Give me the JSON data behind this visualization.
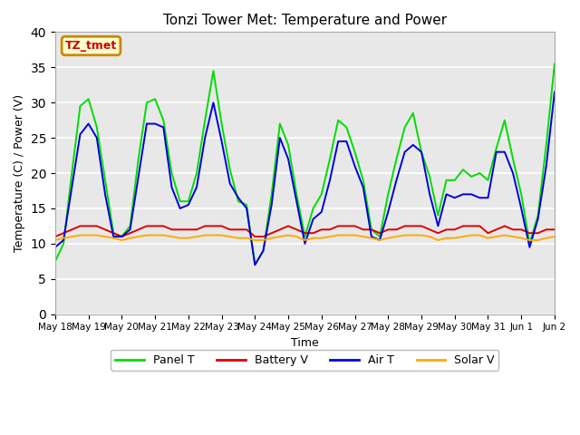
{
  "title": "Tonzi Tower Met: Temperature and Power",
  "xlabel": "Time",
  "ylabel": "Temperature (C) / Power (V)",
  "ylim": [
    0,
    40
  ],
  "yticks": [
    0,
    5,
    10,
    15,
    20,
    25,
    30,
    35,
    40
  ],
  "bg_color": "#e8e8e8",
  "fig_color": "#ffffff",
  "annotation_text": "TZ_tmet",
  "annotation_bg": "#ffffcc",
  "annotation_border": "#cc8800",
  "annotation_text_color": "#cc0000",
  "xtick_labels": [
    "May 18",
    "May 19",
    "May 20",
    "May 21",
    "May 22",
    "May 23",
    "May 24",
    "May 25",
    "May 26",
    "May 27",
    "May 28",
    "May 29",
    "May 30",
    "May 31",
    "Jun 1",
    "Jun 2"
  ],
  "xlim": [
    0,
    15
  ],
  "series": {
    "panel_t": {
      "label": "Panel T",
      "color": "#00dd00",
      "lw": 1.4
    },
    "battery_v": {
      "label": "Battery V",
      "color": "#dd0000",
      "lw": 1.4
    },
    "air_t": {
      "label": "Air T",
      "color": "#0000dd",
      "lw": 1.4
    },
    "solar_v": {
      "label": "Solar V",
      "color": "#ffaa00",
      "lw": 1.4
    }
  },
  "panel_t_x": [
    0.0,
    0.25,
    0.5,
    0.75,
    1.0,
    1.25,
    1.5,
    1.75,
    2.0,
    2.25,
    2.5,
    2.75,
    3.0,
    3.25,
    3.5,
    3.75,
    4.0,
    4.25,
    4.5,
    4.75,
    5.0,
    5.25,
    5.5,
    5.75,
    6.0,
    6.25,
    6.5,
    6.75,
    7.0,
    7.25,
    7.5,
    7.75,
    8.0,
    8.25,
    8.5,
    8.75,
    9.0,
    9.25,
    9.5,
    9.75,
    10.0,
    10.25,
    10.5,
    10.75,
    11.0,
    11.25,
    11.5,
    11.75,
    12.0,
    12.25,
    12.5,
    12.75,
    13.0,
    13.25,
    13.5,
    13.75,
    14.0,
    14.25,
    14.5,
    14.75,
    15.0
  ],
  "panel_t_y": [
    7.5,
    10.0,
    20.0,
    29.5,
    30.5,
    26.5,
    19.0,
    11.5,
    11.0,
    12.5,
    22.0,
    30.0,
    30.5,
    27.5,
    20.0,
    16.0,
    16.0,
    20.0,
    27.5,
    34.5,
    27.0,
    20.5,
    16.0,
    15.5,
    7.0,
    9.0,
    17.0,
    27.0,
    24.0,
    17.0,
    11.0,
    15.0,
    17.0,
    22.0,
    27.5,
    26.5,
    23.0,
    19.0,
    12.0,
    11.0,
    17.0,
    22.0,
    26.5,
    28.5,
    23.0,
    19.5,
    14.0,
    19.0,
    19.0,
    20.5,
    19.5,
    20.0,
    19.0,
    23.5,
    27.5,
    22.0,
    17.0,
    10.0,
    14.0,
    24.0,
    35.5
  ],
  "air_t_x": [
    0.0,
    0.25,
    0.5,
    0.75,
    1.0,
    1.25,
    1.5,
    1.75,
    2.0,
    2.25,
    2.5,
    2.75,
    3.0,
    3.25,
    3.5,
    3.75,
    4.0,
    4.25,
    4.5,
    4.75,
    5.0,
    5.25,
    5.5,
    5.75,
    6.0,
    6.25,
    6.5,
    6.75,
    7.0,
    7.25,
    7.5,
    7.75,
    8.0,
    8.25,
    8.5,
    8.75,
    9.0,
    9.25,
    9.5,
    9.75,
    10.0,
    10.25,
    10.5,
    10.75,
    11.0,
    11.25,
    11.5,
    11.75,
    12.0,
    12.25,
    12.5,
    12.75,
    13.0,
    13.25,
    13.5,
    13.75,
    14.0,
    14.25,
    14.5,
    14.75,
    15.0
  ],
  "air_t_y": [
    9.5,
    10.5,
    18.0,
    25.5,
    27.0,
    25.0,
    17.0,
    11.0,
    11.0,
    12.0,
    19.5,
    27.0,
    27.0,
    26.5,
    18.0,
    15.0,
    15.5,
    18.0,
    25.0,
    30.0,
    24.5,
    18.5,
    16.5,
    15.0,
    7.0,
    9.0,
    15.5,
    25.0,
    22.0,
    16.0,
    10.0,
    13.5,
    14.5,
    19.0,
    24.5,
    24.5,
    21.0,
    18.0,
    11.0,
    10.5,
    14.5,
    19.0,
    23.0,
    24.0,
    23.0,
    17.0,
    12.5,
    17.0,
    16.5,
    17.0,
    17.0,
    16.5,
    16.5,
    23.0,
    23.0,
    20.0,
    15.0,
    9.5,
    13.5,
    21.0,
    31.5
  ],
  "battery_v_x": [
    0.0,
    0.25,
    0.5,
    0.75,
    1.0,
    1.25,
    1.5,
    1.75,
    2.0,
    2.25,
    2.5,
    2.75,
    3.0,
    3.25,
    3.5,
    3.75,
    4.0,
    4.25,
    4.5,
    4.75,
    5.0,
    5.25,
    5.5,
    5.75,
    6.0,
    6.25,
    6.5,
    6.75,
    7.0,
    7.25,
    7.5,
    7.75,
    8.0,
    8.25,
    8.5,
    8.75,
    9.0,
    9.25,
    9.5,
    9.75,
    10.0,
    10.25,
    10.5,
    10.75,
    11.0,
    11.25,
    11.5,
    11.75,
    12.0,
    12.25,
    12.5,
    12.75,
    13.0,
    13.25,
    13.5,
    13.75,
    14.0,
    14.25,
    14.5,
    14.75,
    15.0
  ],
  "battery_v_y": [
    11.0,
    11.5,
    12.0,
    12.5,
    12.5,
    12.5,
    12.0,
    11.5,
    11.0,
    11.5,
    12.0,
    12.5,
    12.5,
    12.5,
    12.0,
    12.0,
    12.0,
    12.0,
    12.5,
    12.5,
    12.5,
    12.0,
    12.0,
    12.0,
    11.0,
    11.0,
    11.5,
    12.0,
    12.5,
    12.0,
    11.5,
    11.5,
    12.0,
    12.0,
    12.5,
    12.5,
    12.5,
    12.0,
    12.0,
    11.5,
    12.0,
    12.0,
    12.5,
    12.5,
    12.5,
    12.0,
    11.5,
    12.0,
    12.0,
    12.5,
    12.5,
    12.5,
    11.5,
    12.0,
    12.5,
    12.0,
    12.0,
    11.5,
    11.5,
    12.0,
    12.0
  ],
  "solar_v_x": [
    0.0,
    0.25,
    0.5,
    0.75,
    1.0,
    1.25,
    1.5,
    1.75,
    2.0,
    2.25,
    2.5,
    2.75,
    3.0,
    3.25,
    3.5,
    3.75,
    4.0,
    4.25,
    4.5,
    4.75,
    5.0,
    5.25,
    5.5,
    5.75,
    6.0,
    6.25,
    6.5,
    6.75,
    7.0,
    7.25,
    7.5,
    7.75,
    8.0,
    8.25,
    8.5,
    8.75,
    9.0,
    9.25,
    9.5,
    9.75,
    10.0,
    10.25,
    10.5,
    10.75,
    11.0,
    11.25,
    11.5,
    11.75,
    12.0,
    12.25,
    12.5,
    12.75,
    13.0,
    13.25,
    13.5,
    13.75,
    14.0,
    14.25,
    14.5,
    14.75,
    15.0
  ],
  "solar_v_y": [
    10.5,
    10.8,
    11.0,
    11.2,
    11.2,
    11.2,
    11.0,
    10.8,
    10.5,
    10.8,
    11.0,
    11.2,
    11.2,
    11.2,
    11.0,
    10.8,
    10.8,
    11.0,
    11.2,
    11.2,
    11.2,
    11.0,
    10.8,
    10.8,
    10.5,
    10.5,
    10.8,
    11.0,
    11.2,
    11.0,
    10.5,
    10.8,
    10.8,
    11.0,
    11.2,
    11.2,
    11.2,
    11.0,
    10.8,
    10.5,
    10.8,
    11.0,
    11.2,
    11.2,
    11.2,
    11.0,
    10.5,
    10.8,
    10.8,
    11.0,
    11.2,
    11.2,
    10.8,
    11.0,
    11.2,
    11.0,
    10.8,
    10.5,
    10.5,
    10.8,
    11.0
  ]
}
